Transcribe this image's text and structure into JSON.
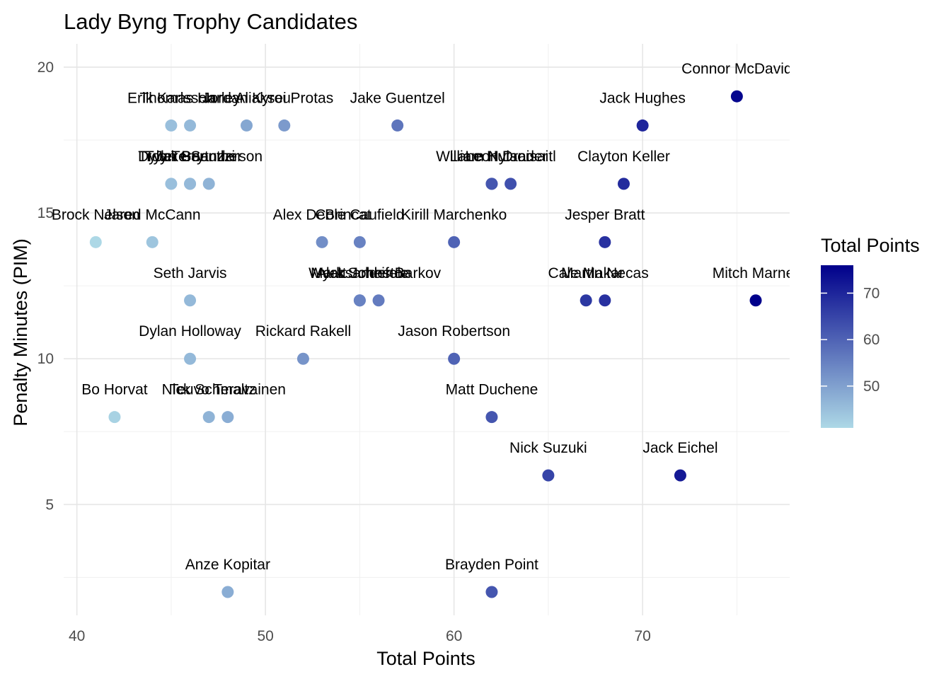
{
  "chart_data": {
    "type": "scatter",
    "title": "Lady Byng Trophy Candidates",
    "xlabel": "Total Points",
    "ylabel": "Penalty Minutes (PIM)",
    "xlim": [
      39.3,
      77.8
    ],
    "ylim": [
      1.2,
      20.8
    ],
    "x_ticks": [
      40,
      50,
      60,
      70
    ],
    "y_ticks": [
      5,
      10,
      15,
      20
    ],
    "grid": true,
    "legend": {
      "title": "Total Points",
      "position": "right",
      "range": [
        41,
        76
      ],
      "ticks": [
        50,
        60,
        70
      ],
      "color_low": "#add8e6",
      "color_high": "#00008b"
    },
    "points": [
      {
        "name": "Connor McDavid",
        "x": 75,
        "y": 19
      },
      {
        "name": "Jack Hughes",
        "x": 70,
        "y": 18
      },
      {
        "name": "Erik Karlsson",
        "x": 45,
        "y": 18
      },
      {
        "name": "Thomas Harley",
        "x": 46,
        "y": 18
      },
      {
        "name": "Jordan Kyrou",
        "x": 49,
        "y": 18
      },
      {
        "name": "Aliaksei Protas",
        "x": 51,
        "y": 18
      },
      {
        "name": "Jake Guentzel",
        "x": 57,
        "y": 18
      },
      {
        "name": "William Nylander",
        "x": 62,
        "y": 16
      },
      {
        "name": "Lane Hutson",
        "x": 62,
        "y": 16
      },
      {
        "name": "Leon Draisaitl",
        "x": 63,
        "y": 16
      },
      {
        "name": "Clayton Keller",
        "x": 69,
        "y": 16
      },
      {
        "name": "Troy Terry",
        "x": 45,
        "y": 16
      },
      {
        "name": "Dylan Guenther",
        "x": 46,
        "y": 16
      },
      {
        "name": "Tyler Bertuzzi",
        "x": 46,
        "y": 16
      },
      {
        "name": "Jake Sanderson",
        "x": 47,
        "y": 16
      },
      {
        "name": "Brock Nelson",
        "x": 41,
        "y": 14
      },
      {
        "name": "Jared McCann",
        "x": 44,
        "y": 14
      },
      {
        "name": "Alex DeBrincat",
        "x": 53,
        "y": 14
      },
      {
        "name": "Cole Caufield",
        "x": 55,
        "y": 14
      },
      {
        "name": "Kirill Marchenko",
        "x": 60,
        "y": 14
      },
      {
        "name": "Jesper Bratt",
        "x": 68,
        "y": 14
      },
      {
        "name": "Seth Jarvis",
        "x": 46,
        "y": 12
      },
      {
        "name": "Wyatt Johnston",
        "x": 55,
        "y": 12
      },
      {
        "name": "Aleksander Barkov",
        "x": 56,
        "y": 12
      },
      {
        "name": "Mark Scheifele",
        "x": 55,
        "y": 12
      },
      {
        "name": "Cale Makar",
        "x": 67,
        "y": 12
      },
      {
        "name": "Martin Necas",
        "x": 68,
        "y": 12
      },
      {
        "name": "Mitch Marner",
        "x": 76,
        "y": 12
      },
      {
        "name": "Dylan Holloway",
        "x": 46,
        "y": 10
      },
      {
        "name": "Rickard Rakell",
        "x": 52,
        "y": 10
      },
      {
        "name": "Jason Robertson",
        "x": 60,
        "y": 10
      },
      {
        "name": "Bo Horvat",
        "x": 42,
        "y": 8
      },
      {
        "name": "Nick Schmaltz",
        "x": 47,
        "y": 8
      },
      {
        "name": "Teuvo Teravainen",
        "x": 48,
        "y": 8
      },
      {
        "name": "Matt Duchene",
        "x": 62,
        "y": 8
      },
      {
        "name": "Nick Suzuki",
        "x": 65,
        "y": 6
      },
      {
        "name": "Jack Eichel",
        "x": 72,
        "y": 6
      },
      {
        "name": "Anze Kopitar",
        "x": 48,
        "y": 2
      },
      {
        "name": "Brayden Point",
        "x": 62,
        "y": 2
      }
    ]
  }
}
